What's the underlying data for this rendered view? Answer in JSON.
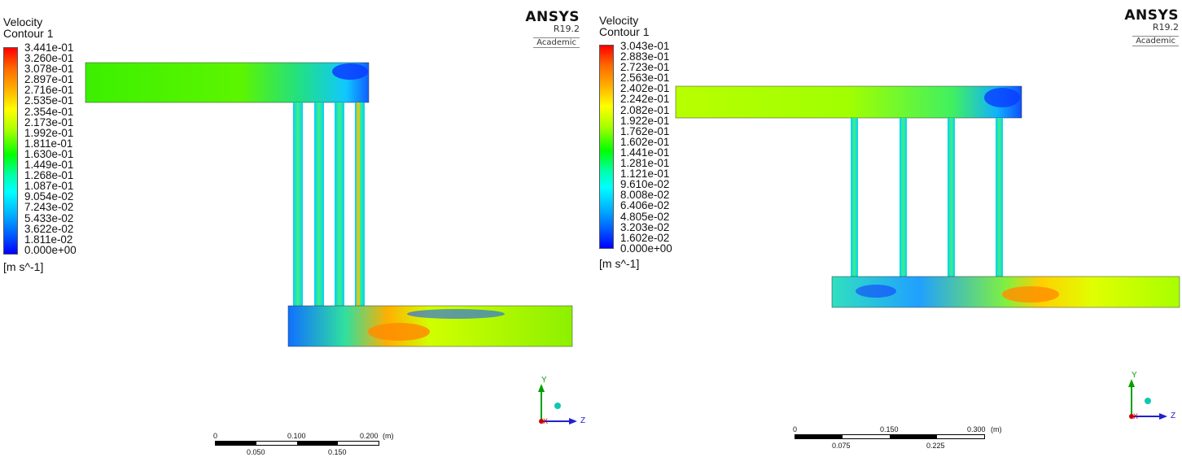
{
  "panels": [
    {
      "legend": {
        "title": "Velocity",
        "subtitle": "Contour 1",
        "ticks": [
          "3.441e-01",
          "3.260e-01",
          "3.078e-01",
          "2.897e-01",
          "2.716e-01",
          "2.535e-01",
          "2.354e-01",
          "2.173e-01",
          "1.992e-01",
          "1.811e-01",
          "1.630e-01",
          "1.449e-01",
          "1.268e-01",
          "1.087e-01",
          "9.054e-02",
          "7.243e-02",
          "5.433e-02",
          "3.622e-02",
          "1.811e-02",
          "0.000e+00"
        ],
        "units": "[m s^-1]"
      },
      "brand": {
        "name": "ANSYS",
        "version": "R19.2",
        "edition": "Academic"
      },
      "scale": {
        "top_labels": [
          "0",
          "0.100",
          "0.200"
        ],
        "bottom_labels": [
          "0.050",
          "0.150"
        ],
        "unit": "(m)"
      },
      "axes": {
        "y": "Y",
        "z": "Z",
        "x": "X"
      }
    },
    {
      "legend": {
        "title": "Velocity",
        "subtitle": "Contour 1",
        "ticks": [
          "3.043e-01",
          "2.883e-01",
          "2.723e-01",
          "2.563e-01",
          "2.402e-01",
          "2.242e-01",
          "2.082e-01",
          "1.922e-01",
          "1.762e-01",
          "1.602e-01",
          "1.441e-01",
          "1.281e-01",
          "1.121e-01",
          "9.610e-02",
          "8.008e-02",
          "6.406e-02",
          "4.805e-02",
          "3.203e-02",
          "1.602e-02",
          "0.000e+00"
        ],
        "units": "[m s^-1]"
      },
      "brand": {
        "name": "ANSYS",
        "version": "R19.2",
        "edition": "Academic"
      },
      "scale": {
        "top_labels": [
          "0",
          "0.150",
          "0.300"
        ],
        "bottom_labels": [
          "0.075",
          "0.225"
        ],
        "unit": "(m)"
      },
      "axes": {
        "y": "Y",
        "z": "Z",
        "x": "X"
      }
    }
  ],
  "colors": {
    "high": "#ff0000",
    "mid": "#00ff00",
    "low": "#0000ff",
    "axis_y": "#00a000",
    "axis_z": "#2020d0",
    "axis_x": "#d00000"
  }
}
